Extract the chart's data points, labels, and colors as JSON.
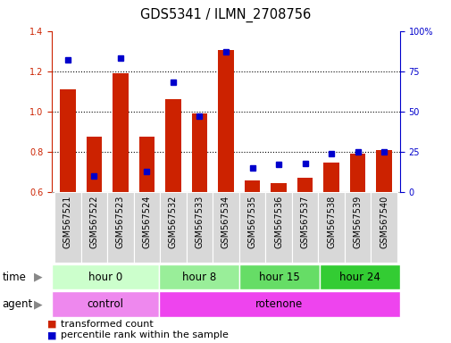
{
  "title": "GDS5341 / ILMN_2708756",
  "samples": [
    "GSM567521",
    "GSM567522",
    "GSM567523",
    "GSM567524",
    "GSM567532",
    "GSM567533",
    "GSM567534",
    "GSM567535",
    "GSM567536",
    "GSM567537",
    "GSM567538",
    "GSM567539",
    "GSM567540"
  ],
  "transformed_count": [
    1.11,
    0.875,
    1.19,
    0.875,
    1.06,
    0.99,
    1.305,
    0.66,
    0.645,
    0.67,
    0.745,
    0.79,
    0.81
  ],
  "percentile_rank": [
    82,
    10,
    83,
    13,
    68,
    47,
    87,
    15,
    17,
    18,
    24,
    25,
    25
  ],
  "ylim_left": [
    0.6,
    1.4
  ],
  "ylim_right": [
    0,
    100
  ],
  "yticks_left": [
    0.6,
    0.8,
    1.0,
    1.2,
    1.4
  ],
  "yticks_right": [
    0,
    25,
    50,
    75,
    100
  ],
  "yticklabels_right": [
    "0",
    "25",
    "50",
    "75",
    "100%"
  ],
  "bar_color": "#cc2200",
  "marker_color": "#0000cc",
  "bar_bottom": 0.6,
  "time_groups": [
    {
      "label": "hour 0",
      "start": 0,
      "end": 4,
      "color": "#ccffcc"
    },
    {
      "label": "hour 8",
      "start": 4,
      "end": 7,
      "color": "#99ee99"
    },
    {
      "label": "hour 15",
      "start": 7,
      "end": 10,
      "color": "#66dd66"
    },
    {
      "label": "hour 24",
      "start": 10,
      "end": 13,
      "color": "#33cc33"
    }
  ],
  "agent_groups": [
    {
      "label": "control",
      "start": 0,
      "end": 4,
      "color": "#ee88ee"
    },
    {
      "label": "rotenone",
      "start": 4,
      "end": 13,
      "color": "#ee44ee"
    }
  ],
  "legend_items": [
    {
      "label": "transformed count",
      "color": "#cc2200"
    },
    {
      "label": "percentile rank within the sample",
      "color": "#0000cc"
    }
  ],
  "background_color": "#ffffff",
  "tick_fontsize": 7,
  "title_fontsize": 10.5,
  "row_fontsize": 8.5,
  "legend_fontsize": 8
}
